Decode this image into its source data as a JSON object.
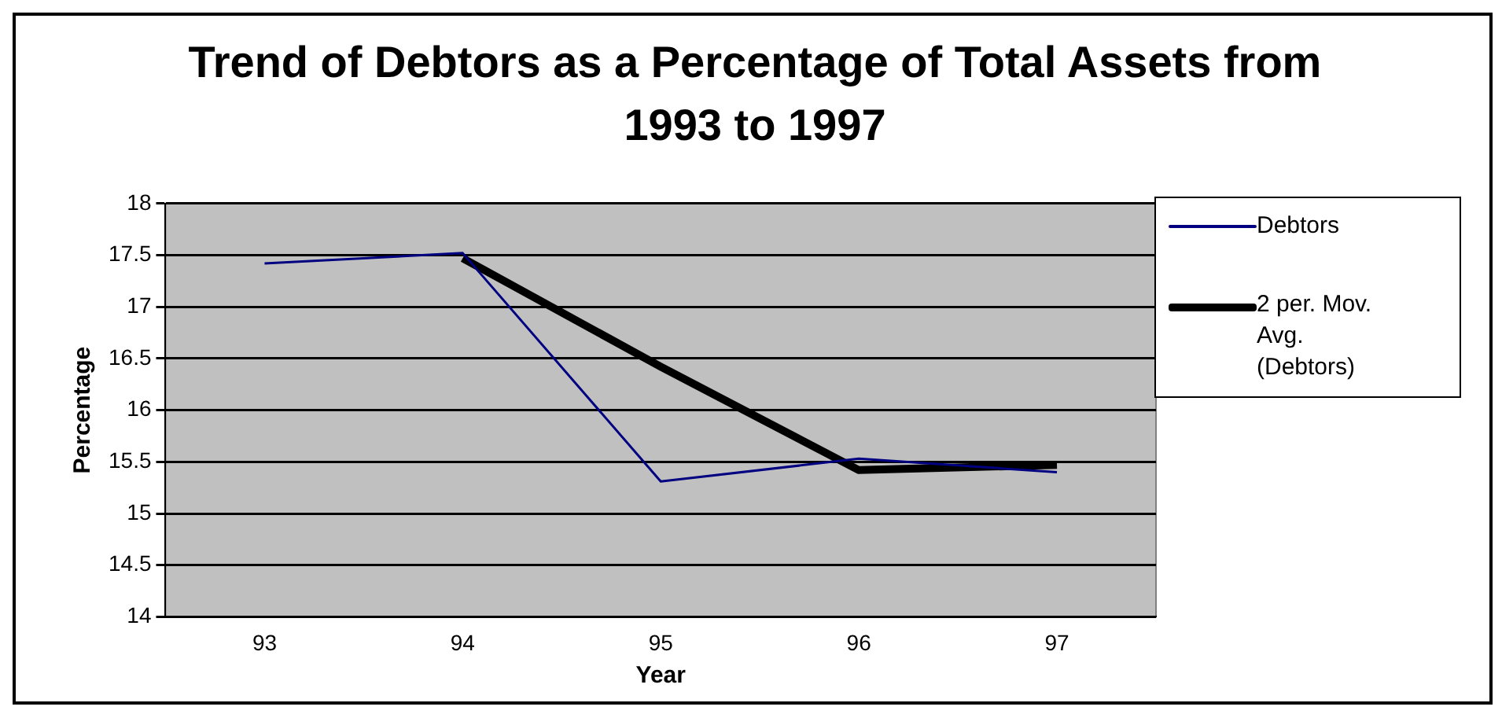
{
  "chart_data": {
    "type": "line",
    "title": "Trend of Debtors as a Percentage of Total Assets from 1993 to 1997",
    "xlabel": "Year",
    "ylabel": "Percentage",
    "categories": [
      "93",
      "94",
      "95",
      "96",
      "97"
    ],
    "series": [
      {
        "name": "Debtors",
        "color": "#000080",
        "values": [
          17.42,
          17.52,
          15.31,
          15.53,
          15.4
        ]
      },
      {
        "name": "2 per. Mov. Avg. (Debtors)",
        "color": "#000000",
        "values": [
          null,
          17.47,
          16.42,
          15.42,
          15.47
        ]
      }
    ],
    "ylim": [
      14,
      18
    ],
    "yticks": [
      14,
      14.5,
      15,
      15.5,
      16,
      16.5,
      17,
      17.5,
      18
    ],
    "grid": "y",
    "legend": "right",
    "marker": "none",
    "line_style": "solid"
  }
}
